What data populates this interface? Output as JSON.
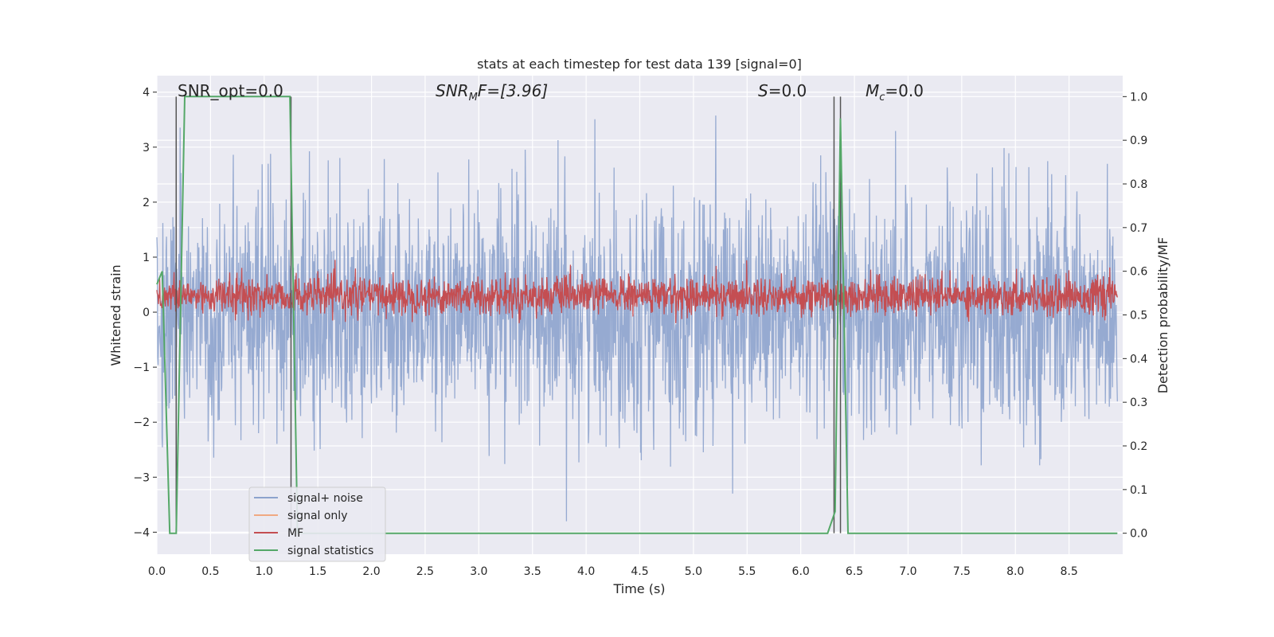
{
  "chart_data": {
    "type": "line",
    "title": "stats at each timestep for test data 139 [signal=0]",
    "xlabel": "Time (s)",
    "ylabel": "Whitened strain",
    "y2label": "Detection probability/MF",
    "xlim": [
      0.0,
      9.0
    ],
    "ylim": [
      -4.4,
      4.3
    ],
    "y2lim": [
      -0.048,
      1.048
    ],
    "xticks": [
      "0.0",
      "0.5",
      "1.0",
      "1.5",
      "2.0",
      "2.5",
      "3.0",
      "3.5",
      "4.0",
      "4.5",
      "5.0",
      "5.5",
      "6.0",
      "6.5",
      "7.0",
      "7.5",
      "8.0",
      "8.5"
    ],
    "yticks": [
      "−4",
      "−3",
      "−2",
      "−1",
      "0",
      "1",
      "2",
      "3",
      "4"
    ],
    "y2ticks": [
      "0.0",
      "0.1",
      "0.2",
      "0.3",
      "0.4",
      "0.5",
      "0.6",
      "0.7",
      "0.8",
      "0.9",
      "1.0"
    ],
    "grid": true,
    "legend_position": "lower-left",
    "annotations": {
      "snr_opt": "SNR_opt=0.0",
      "snr_mf_base": "SNR",
      "snr_mf_sub": "M",
      "snr_mf_rest": "F=[3.96]",
      "s_italic": "S",
      "s_rest": "=0.0",
      "mc_base": "M",
      "mc_sub": "c",
      "mc_rest": "=0.0"
    },
    "series": [
      {
        "name": "signal+ noise",
        "color": "#8da3cd",
        "description_values": "noise, whitened strain roughly within [-3.8, 3.9]"
      },
      {
        "name": "signal only",
        "color": "#f0a982",
        "values": []
      },
      {
        "name": "MF",
        "color": "#c44e52",
        "description_values": "matched filter around 0.3, range [-0.2, 1.0]"
      },
      {
        "name": "signal statistics",
        "color": "#55a868",
        "x": [
          0.0,
          0.05,
          0.12,
          0.18,
          0.26,
          1.24,
          1.31,
          6.25,
          6.32,
          6.37,
          6.44,
          8.95
        ],
        "y": [
          0.57,
          0.6,
          0.0,
          0.0,
          1.0,
          1.0,
          0.0,
          0.0,
          0.05,
          0.95,
          0.0,
          0.0
        ]
      }
    ],
    "vlines": [
      0.18,
      1.25,
      6.31,
      6.37
    ],
    "vline_color": "#555555"
  }
}
